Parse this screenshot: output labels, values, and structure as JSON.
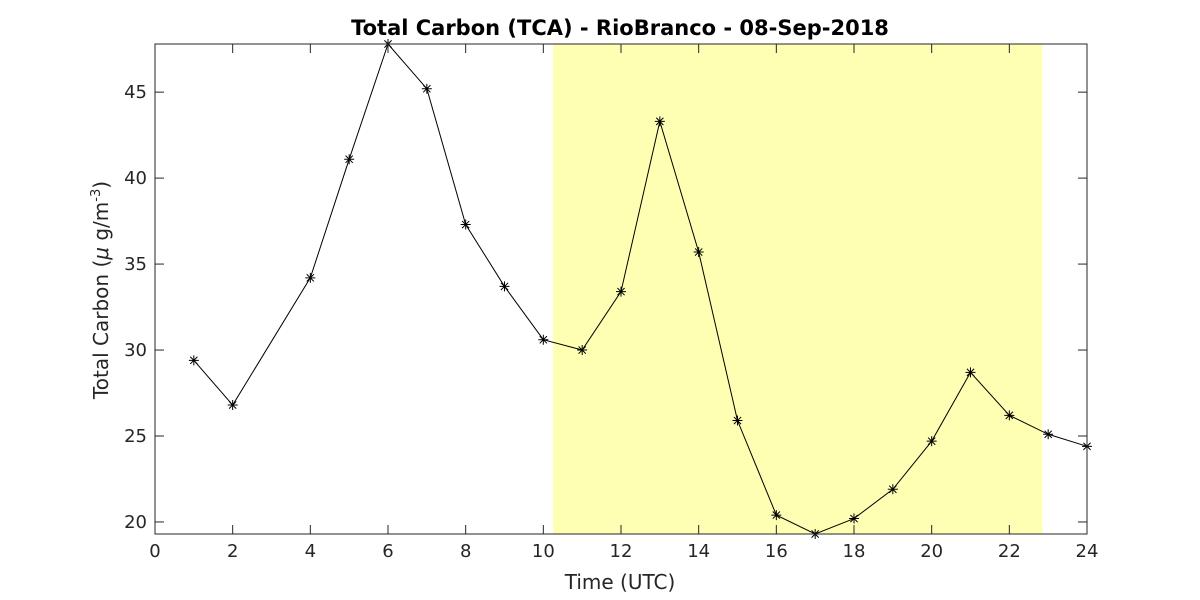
{
  "chart_data": {
    "type": "line",
    "title": "Total Carbon (TCA) - RioBranco - 08-Sep-2018",
    "xlabel": "Time (UTC)",
    "ylabel": {
      "prefix": "Total Carbon (",
      "mu": "μ",
      "mid": " g/m",
      "sup": "-3",
      "suffix": ")"
    },
    "xlim": [
      0,
      24
    ],
    "ylim": [
      19.3,
      47.8
    ],
    "xticks": [
      0,
      2,
      4,
      6,
      8,
      10,
      12,
      14,
      16,
      18,
      20,
      22,
      24
    ],
    "yticks": [
      20,
      25,
      30,
      35,
      40,
      45
    ],
    "grid": false,
    "highlight": {
      "x_start": 10.25,
      "x_end": 22.85,
      "color": "#ffffb3"
    },
    "series": [
      {
        "marker": "asterisk",
        "color": "#000000",
        "x": [
          1,
          2,
          4,
          5,
          6,
          7,
          8,
          9,
          10,
          11,
          12,
          13,
          14,
          15,
          16,
          17,
          18,
          19,
          20,
          21,
          22,
          23,
          24
        ],
        "y": [
          29.4,
          26.8,
          34.2,
          41.1,
          47.8,
          45.2,
          37.3,
          33.7,
          30.6,
          30.0,
          33.4,
          43.3,
          35.7,
          25.9,
          20.4,
          19.3,
          20.2,
          21.9,
          24.7,
          28.7,
          26.2,
          25.1,
          24.4
        ]
      }
    ]
  }
}
